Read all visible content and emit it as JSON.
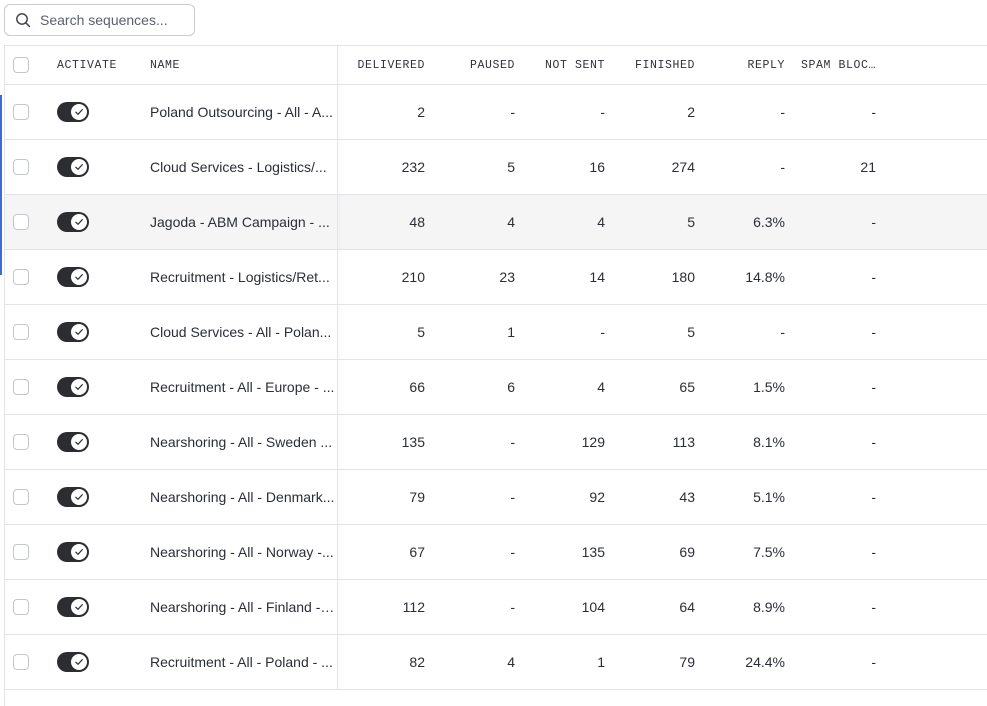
{
  "search": {
    "placeholder": "Search sequences..."
  },
  "table": {
    "headers": {
      "activate": "ACTIVATE",
      "name": "NAME",
      "delivered": "DELIVERED",
      "paused": "PAUSED",
      "not_sent": "NOT SENT",
      "finished": "FINISHED",
      "reply": "REPLY",
      "spam_blocked": "SPAM BLOC…"
    },
    "rows": [
      {
        "active": true,
        "name": "Poland Outsourcing - All - A...",
        "delivered": "2",
        "paused": "-",
        "not_sent": "-",
        "finished": "2",
        "reply": "-",
        "spam_blocked": "-"
      },
      {
        "active": true,
        "name": "Cloud Services - Logistics/...",
        "delivered": "232",
        "paused": "5",
        "not_sent": "16",
        "finished": "274",
        "reply": "-",
        "spam_blocked": "21"
      },
      {
        "active": true,
        "name": "Jagoda - ABM Campaign - ...",
        "delivered": "48",
        "paused": "4",
        "not_sent": "4",
        "finished": "5",
        "reply": "6.3%",
        "spam_blocked": "-"
      },
      {
        "active": true,
        "name": "Recruitment - Logistics/Ret...",
        "delivered": "210",
        "paused": "23",
        "not_sent": "14",
        "finished": "180",
        "reply": "14.8%",
        "spam_blocked": "-"
      },
      {
        "active": true,
        "name": "Cloud Services - All - Polan...",
        "delivered": "5",
        "paused": "1",
        "not_sent": "-",
        "finished": "5",
        "reply": "-",
        "spam_blocked": "-"
      },
      {
        "active": true,
        "name": "Recruitment - All - Europe - ...",
        "delivered": "66",
        "paused": "6",
        "not_sent": "4",
        "finished": "65",
        "reply": "1.5%",
        "spam_blocked": "-"
      },
      {
        "active": true,
        "name": "Nearshoring - All - Sweden ...",
        "delivered": "135",
        "paused": "-",
        "not_sent": "129",
        "finished": "113",
        "reply": "8.1%",
        "spam_blocked": "-"
      },
      {
        "active": true,
        "name": "Nearshoring - All - Denmark...",
        "delivered": "79",
        "paused": "-",
        "not_sent": "92",
        "finished": "43",
        "reply": "5.1%",
        "spam_blocked": "-"
      },
      {
        "active": true,
        "name": "Nearshoring - All - Norway -...",
        "delivered": "67",
        "paused": "-",
        "not_sent": "135",
        "finished": "69",
        "reply": "7.5%",
        "spam_blocked": "-"
      },
      {
        "active": true,
        "name": "Nearshoring - All - Finland - ...",
        "delivered": "112",
        "paused": "-",
        "not_sent": "104",
        "finished": "64",
        "reply": "8.9%",
        "spam_blocked": "-"
      },
      {
        "active": true,
        "name": "Recruitment - All - Poland - ...",
        "delivered": "82",
        "paused": "4",
        "not_sent": "1",
        "finished": "79",
        "reply": "24.4%",
        "spam_blocked": "-"
      }
    ],
    "highlighted_row": 2
  },
  "icons": {
    "search": "search-icon",
    "toggle_check": "check-icon"
  },
  "colors": {
    "toggle_on": "#2b2d31",
    "row_highlight": "#f5f5f6",
    "border": "#e3e4e8"
  }
}
